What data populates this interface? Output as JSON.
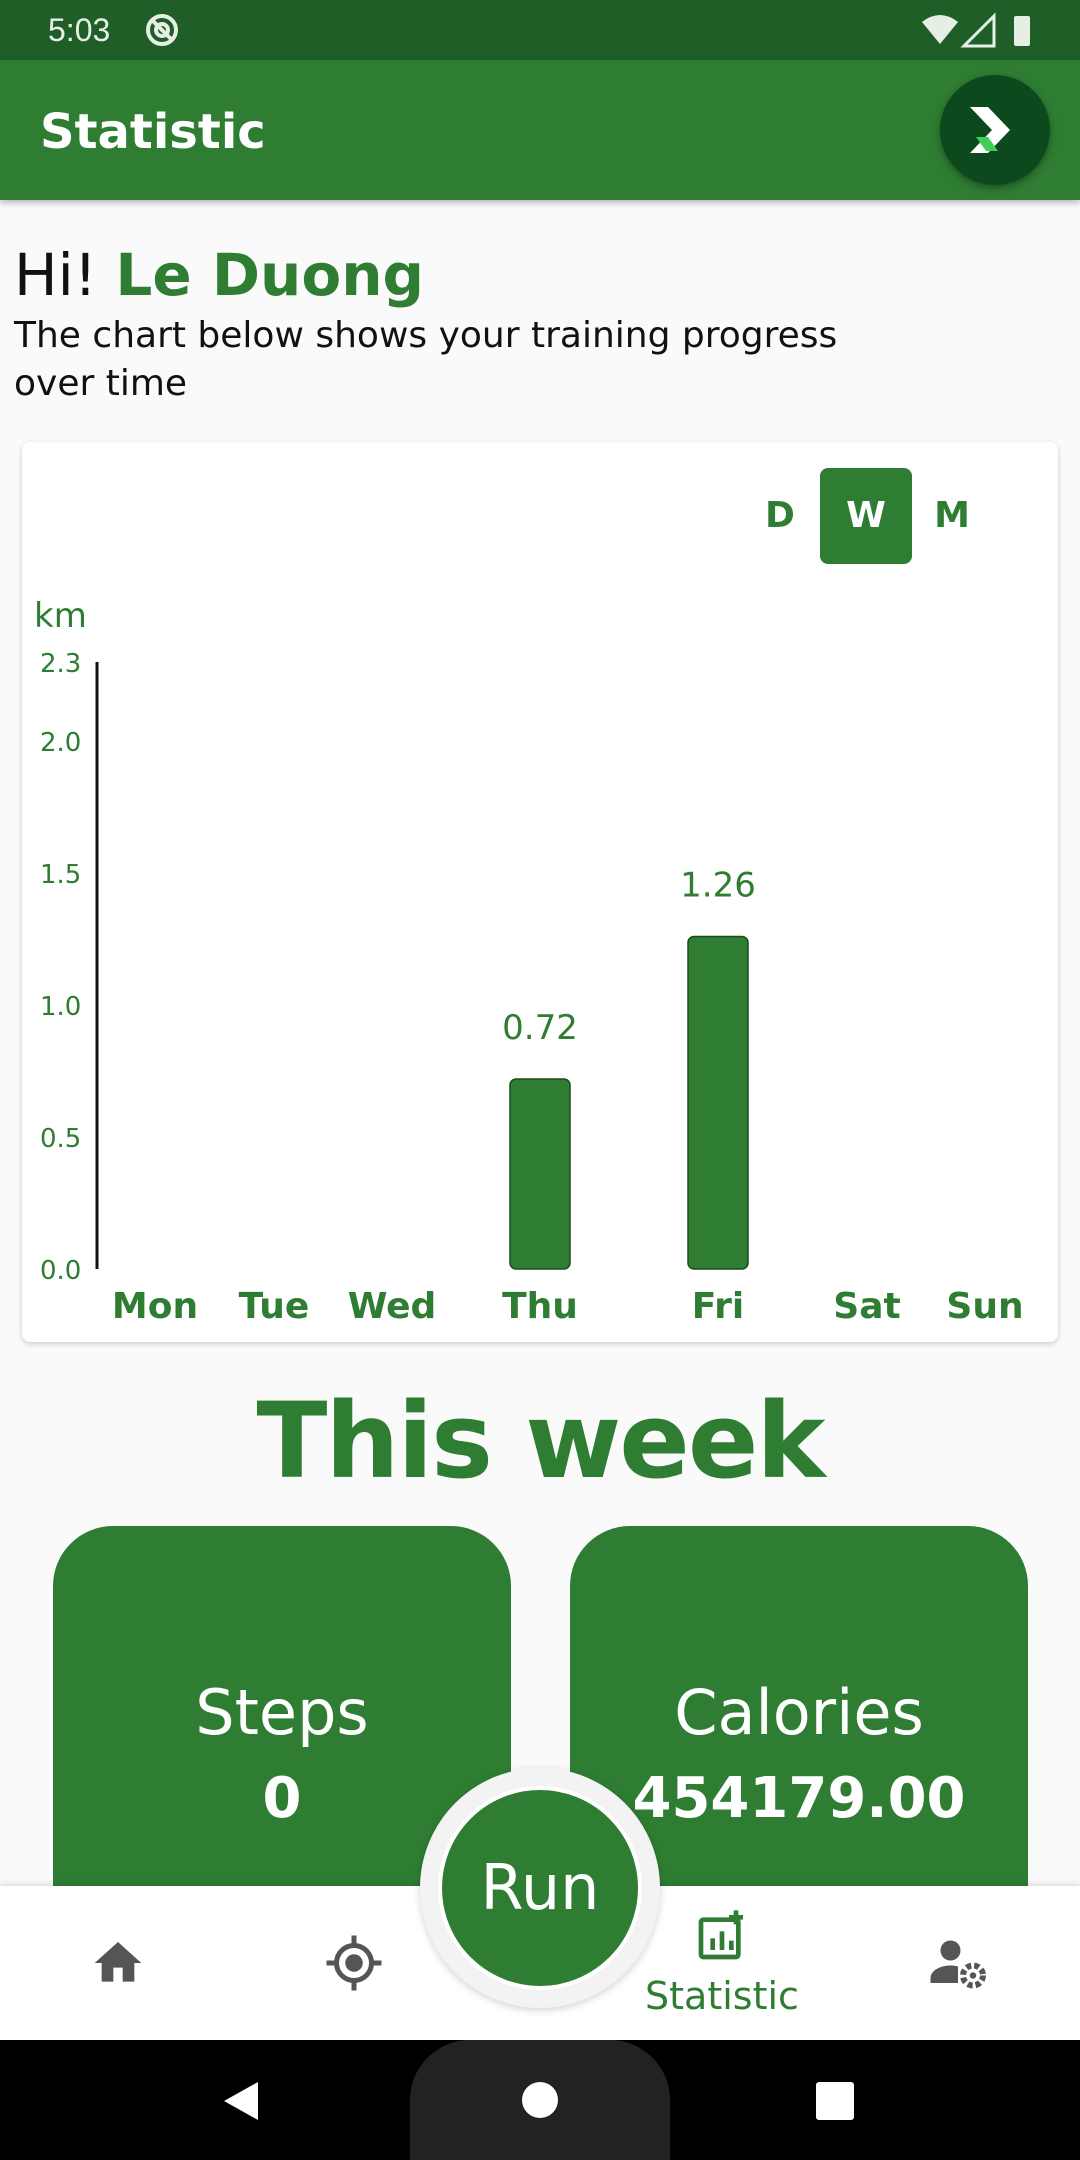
{
  "status_bar": {
    "time": "5:03"
  },
  "app_bar": {
    "title": "Statistic"
  },
  "greeting": {
    "hi": "Hi! ",
    "name": "Le Duong",
    "subtitle": "The chart below shows your training progress over time"
  },
  "period_toggle": {
    "options": [
      "D",
      "W",
      "M"
    ],
    "selected": "W"
  },
  "chart_data": {
    "type": "bar",
    "ylabel": "km",
    "categories": [
      "Mon",
      "Tue",
      "Wed",
      "Thu",
      "Fri",
      "Sat",
      "Sun"
    ],
    "values": [
      0,
      0,
      0,
      0.72,
      1.26,
      0,
      0
    ],
    "data_labels": [
      "",
      "",
      "",
      "0.72",
      "1.26",
      "",
      ""
    ],
    "yticks": [
      "0.0",
      "0.5",
      "1.0",
      "1.5",
      "2.0",
      "2.3"
    ],
    "ylim": [
      0,
      2.3
    ],
    "grid": false,
    "bar_color": "#2e7d32"
  },
  "this_week": {
    "title": "This week",
    "steps": {
      "label": "Steps",
      "value": "0"
    },
    "calories": {
      "label": "Calories",
      "value": "454179.00"
    }
  },
  "bottom_nav": {
    "run_label": "Run",
    "items": [
      {
        "icon": "home-icon"
      },
      {
        "icon": "gps-target-icon"
      },
      {
        "icon": "statistic-icon",
        "label": "Statistic"
      },
      {
        "icon": "user-settings-icon"
      }
    ]
  },
  "colors": {
    "primary": "#2e7d32",
    "dark": "#1f5e27",
    "status": "#1f5e27"
  }
}
